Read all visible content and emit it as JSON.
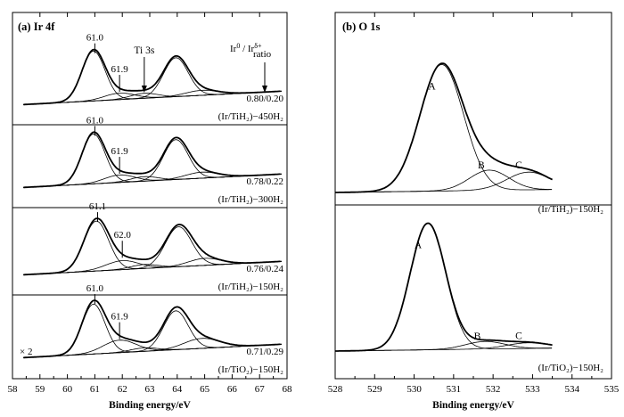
{
  "chart_data": [
    {
      "type": "line",
      "panel_label": "(a) Ir 4f",
      "xlabel": "Binding energy/eV",
      "ylabel": "",
      "xlim": [
        58,
        68
      ],
      "x_reversed": false,
      "x_ticks": [
        "58",
        "59",
        "60",
        "61",
        "62",
        "63",
        "64",
        "65",
        "66",
        "67",
        "68"
      ],
      "grid": false,
      "header_annotations": {
        "ratio_head": "Ir⁰ / Ir^δ+",
        "ratio_word": "ratio",
        "ti_label": "Ti 3s",
        "ti_position_ev": 62.8
      },
      "scale_note": "× 2",
      "spectra": [
        {
          "sample": "(Ir/TiH₂)−450H₂",
          "ratio": "0.80/0.20",
          "peak_labels": [
            {
              "x": 61.0,
              "text": "61.0"
            },
            {
              "x": 61.9,
              "text": "61.9"
            }
          ],
          "components": [
            {
              "name": "Ir0 4f7/2",
              "center": 60.95,
              "height": 1.0,
              "width": 0.42
            },
            {
              "name": "Ir0 4f5/2",
              "center": 63.95,
              "height": 0.78,
              "width": 0.45
            },
            {
              "name": "Ir-delta 4f7/2",
              "center": 61.9,
              "height": 0.13,
              "width": 0.55
            },
            {
              "name": "Ir-delta 4f5/2",
              "center": 64.9,
              "height": 0.1,
              "width": 0.6
            },
            {
              "name": "Ti 3s",
              "center": 62.8,
              "height": 0.1,
              "width": 0.5
            }
          ]
        },
        {
          "sample": "(Ir/TiH₂)−300H₂",
          "ratio": "0.78/0.22",
          "peak_labels": [
            {
              "x": 61.0,
              "text": "61.0"
            },
            {
              "x": 61.9,
              "text": "61.9"
            }
          ],
          "components": [
            {
              "name": "Ir0 4f7/2",
              "center": 60.95,
              "height": 1.0,
              "width": 0.42
            },
            {
              "name": "Ir0 4f5/2",
              "center": 63.95,
              "height": 0.8,
              "width": 0.45
            },
            {
              "name": "Ir-delta 4f7/2",
              "center": 61.9,
              "height": 0.15,
              "width": 0.55
            },
            {
              "name": "Ir-delta 4f5/2",
              "center": 64.9,
              "height": 0.12,
              "width": 0.6
            },
            {
              "name": "Ti 3s",
              "center": 62.8,
              "height": 0.09,
              "width": 0.5
            }
          ]
        },
        {
          "sample": "(Ir/TiH₂)−150H₂",
          "ratio": "0.76/0.24",
          "peak_labels": [
            {
              "x": 61.1,
              "text": "61.1"
            },
            {
              "x": 62.0,
              "text": "62.0"
            }
          ],
          "components": [
            {
              "name": "Ir0 4f7/2",
              "center": 61.05,
              "height": 1.0,
              "width": 0.45
            },
            {
              "name": "Ir0 4f5/2",
              "center": 64.05,
              "height": 0.8,
              "width": 0.48
            },
            {
              "name": "Ir-delta 4f7/2",
              "center": 62.0,
              "height": 0.18,
              "width": 0.6
            },
            {
              "name": "Ir-delta 4f5/2",
              "center": 65.0,
              "height": 0.14,
              "width": 0.6
            },
            {
              "name": "Ti 3s",
              "center": 62.8,
              "height": 0.08,
              "width": 0.5
            }
          ]
        },
        {
          "sample": "(Ir/TiO₂)−150H₂",
          "ratio": "0.71/0.29",
          "peak_labels": [
            {
              "x": 61.0,
              "text": "61.0"
            },
            {
              "x": 61.9,
              "text": "61.9"
            }
          ],
          "components": [
            {
              "name": "Ir0 4f7/2",
              "center": 60.95,
              "height": 1.0,
              "width": 0.42
            },
            {
              "name": "Ir0 4f5/2",
              "center": 63.95,
              "height": 0.78,
              "width": 0.45
            },
            {
              "name": "Ir-delta 4f7/2",
              "center": 61.9,
              "height": 0.25,
              "width": 0.6
            },
            {
              "name": "Ir-delta 4f5/2",
              "center": 64.9,
              "height": 0.2,
              "width": 0.65
            },
            {
              "name": "Ti 3s",
              "center": 62.8,
              "height": 0.07,
              "width": 0.5
            }
          ]
        }
      ]
    },
    {
      "type": "line",
      "panel_label": "(b) O 1s",
      "xlabel": "Binding energy/eV",
      "ylabel": "",
      "xlim": [
        528,
        535
      ],
      "x_reversed": false,
      "x_ticks": [
        "528",
        "529",
        "530",
        "531",
        "532",
        "533",
        "534",
        "535"
      ],
      "grid": false,
      "spectra": [
        {
          "sample": "(Ir/TiH₂)−150H₂",
          "components": [
            {
              "name": "A",
              "center": 530.7,
              "height": 1.0,
              "width": 0.55
            },
            {
              "name": "B",
              "center": 531.9,
              "height": 0.16,
              "width": 0.5
            },
            {
              "name": "C",
              "center": 532.9,
              "height": 0.14,
              "width": 0.55
            }
          ]
        },
        {
          "sample": "(Ir/TiO₂)−150H₂",
          "components": [
            {
              "name": "A",
              "center": 530.35,
              "height": 1.0,
              "width": 0.45
            },
            {
              "name": "B",
              "center": 531.8,
              "height": 0.06,
              "width": 0.5
            },
            {
              "name": "C",
              "center": 532.9,
              "height": 0.045,
              "width": 0.55
            }
          ]
        }
      ]
    }
  ]
}
